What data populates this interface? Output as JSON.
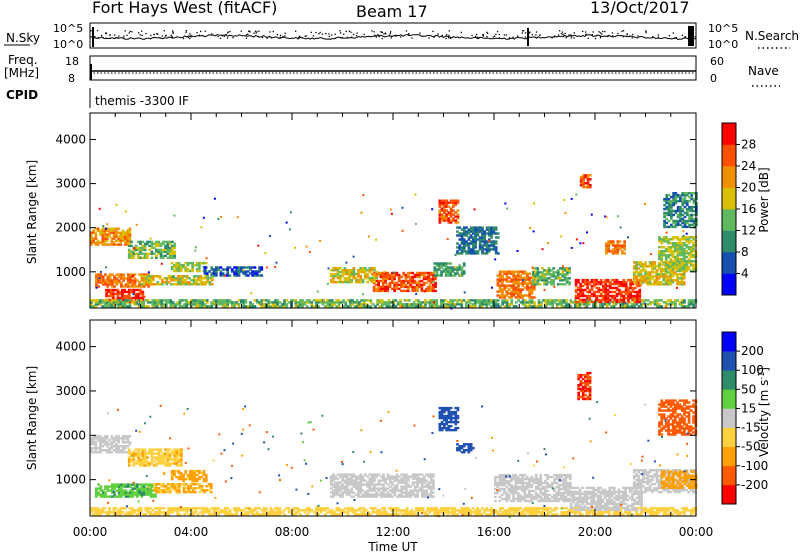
{
  "header": {
    "station": "Fort Hays West (fitACF)",
    "beam": "Beam 17",
    "date": "13/Oct/2017"
  },
  "top_panels": {
    "nsky_label": "N.Sky",
    "nsearch_label": "N.Search",
    "noise_left_ticks": [
      "10^5",
      "10^0"
    ],
    "noise_right_ticks": [
      "10^5",
      "10^0"
    ],
    "freq_label_1": "Freq.",
    "freq_label_2": "[MHz]",
    "freq_ticks": [
      "18",
      "8"
    ],
    "nave_label": "Nave",
    "nave_ticks": [
      "60",
      "0"
    ],
    "cpid_label": "CPID",
    "cpid_value": "themis -3300 IF"
  },
  "chart_data": [
    {
      "type": "heatmap",
      "name": "power",
      "ylabel": "Slant Range [km]",
      "yticks": [
        1000,
        2000,
        3000,
        4000
      ],
      "ylim": [
        180,
        4600
      ],
      "xlim": [
        0,
        24
      ],
      "xticks": [
        "00:00",
        "04:00",
        "08:00",
        "12:00",
        "16:00",
        "20:00",
        "00:00"
      ],
      "colorbar": {
        "label": "Power [dB]",
        "ticks": [
          "4",
          "8",
          "12",
          "16",
          "20",
          "24",
          "28"
        ],
        "colors": [
          "#0000ff",
          "#1550b0",
          "#2e8b6a",
          "#60b860",
          "#d8c000",
          "#f09000",
          "#ff5000",
          "#ff0000"
        ]
      },
      "regions": [
        {
          "t0": 0.0,
          "t1": 1.6,
          "r0": 1600,
          "r1": 2000,
          "v": 22
        },
        {
          "t0": 1.5,
          "t1": 3.3,
          "r0": 1300,
          "r1": 1700,
          "v": 14
        },
        {
          "t0": 3.2,
          "t1": 4.6,
          "r0": 1000,
          "r1": 1200,
          "v": 16
        },
        {
          "t0": 4.5,
          "t1": 6.8,
          "r0": 900,
          "r1": 1100,
          "v": 6
        },
        {
          "t0": 0.2,
          "t1": 2.3,
          "r0": 650,
          "r1": 950,
          "v": 24
        },
        {
          "t0": 2.0,
          "t1": 4.8,
          "r0": 700,
          "r1": 900,
          "v": 18
        },
        {
          "t0": 0.6,
          "t1": 2.1,
          "r0": 300,
          "r1": 600,
          "v": 28
        },
        {
          "t0": 0.0,
          "t1": 24.0,
          "r0": 200,
          "r1": 350,
          "v": 14
        },
        {
          "t0": 11.2,
          "t1": 13.7,
          "r0": 550,
          "r1": 1000,
          "v": 26
        },
        {
          "t0": 9.5,
          "t1": 11.3,
          "r0": 750,
          "r1": 1100,
          "v": 18
        },
        {
          "t0": 13.6,
          "t1": 14.8,
          "r0": 900,
          "r1": 1200,
          "v": 12
        },
        {
          "t0": 13.8,
          "t1": 14.6,
          "r0": 2100,
          "r1": 2600,
          "v": 26
        },
        {
          "t0": 14.5,
          "t1": 16.2,
          "r0": 1400,
          "r1": 2000,
          "v": 8
        },
        {
          "t0": 16.1,
          "t1": 17.6,
          "r0": 400,
          "r1": 1000,
          "v": 24
        },
        {
          "t0": 17.5,
          "t1": 19.0,
          "r0": 700,
          "r1": 1100,
          "v": 14
        },
        {
          "t0": 19.2,
          "t1": 21.8,
          "r0": 300,
          "r1": 800,
          "v": 28
        },
        {
          "t0": 21.5,
          "t1": 23.5,
          "r0": 700,
          "r1": 1200,
          "v": 18
        },
        {
          "t0": 22.5,
          "t1": 24.0,
          "r0": 1000,
          "r1": 1800,
          "v": 16
        },
        {
          "t0": 22.7,
          "t1": 24.0,
          "r0": 2000,
          "r1": 2800,
          "v": 10
        },
        {
          "t0": 19.4,
          "t1": 19.8,
          "r0": 2900,
          "r1": 3200,
          "v": 26
        },
        {
          "t0": 20.4,
          "t1": 21.2,
          "r0": 1400,
          "r1": 1700,
          "v": 24
        }
      ]
    },
    {
      "type": "heatmap",
      "name": "velocity",
      "ylabel": "Slant Range [km]",
      "xlabel": "Time UT",
      "yticks": [
        1000,
        2000,
        3000,
        4000
      ],
      "ylim": [
        180,
        4600
      ],
      "xlim": [
        0,
        24
      ],
      "xticks": [
        "00:00",
        "04:00",
        "08:00",
        "12:00",
        "16:00",
        "20:00",
        "00:00"
      ],
      "colorbar": {
        "label": "Velocity [m s",
        "label_sup": "-1",
        "label_end": "]",
        "ticks": [
          "-200",
          "-100",
          "-50",
          "-15",
          "15",
          "50",
          "100",
          "200"
        ],
        "colors": [
          "#ff0000",
          "#ff5a00",
          "#ffa000",
          "#ffd040",
          "#c8c8c8",
          "#60d040",
          "#2e8b6a",
          "#2050b0",
          "#0000ff"
        ]
      },
      "regions": [
        {
          "t0": 0.0,
          "t1": 1.6,
          "r0": 1600,
          "r1": 2000,
          "v": 0
        },
        {
          "t0": 1.5,
          "t1": 3.6,
          "r0": 1300,
          "r1": 1700,
          "v": -40
        },
        {
          "t0": 3.2,
          "t1": 4.6,
          "r0": 950,
          "r1": 1200,
          "v": -60
        },
        {
          "t0": 0.2,
          "t1": 2.6,
          "r0": 600,
          "r1": 900,
          "v": 40
        },
        {
          "t0": 2.5,
          "t1": 4.8,
          "r0": 700,
          "r1": 900,
          "v": -50
        },
        {
          "t0": 0.0,
          "t1": 24.0,
          "r0": 200,
          "r1": 350,
          "v": -30
        },
        {
          "t0": 9.5,
          "t1": 13.6,
          "r0": 600,
          "r1": 1100,
          "v": 0
        },
        {
          "t0": 13.8,
          "t1": 14.6,
          "r0": 2100,
          "r1": 2600,
          "v": 150
        },
        {
          "t0": 14.5,
          "t1": 15.2,
          "r0": 1600,
          "r1": 1800,
          "v": 150
        },
        {
          "t0": 16.0,
          "t1": 19.0,
          "r0": 500,
          "r1": 1100,
          "v": 0
        },
        {
          "t0": 19.0,
          "t1": 21.8,
          "r0": 300,
          "r1": 800,
          "v": 0
        },
        {
          "t0": 21.5,
          "t1": 24.0,
          "r0": 700,
          "r1": 1200,
          "v": 0
        },
        {
          "t0": 22.6,
          "t1": 24.0,
          "r0": 800,
          "r1": 1200,
          "v": -80
        },
        {
          "t0": 22.5,
          "t1": 24.0,
          "r0": 2000,
          "r1": 2800,
          "v": -170
        },
        {
          "t0": 19.3,
          "t1": 19.8,
          "r0": 2800,
          "r1": 3400,
          "v": -200
        }
      ]
    }
  ]
}
